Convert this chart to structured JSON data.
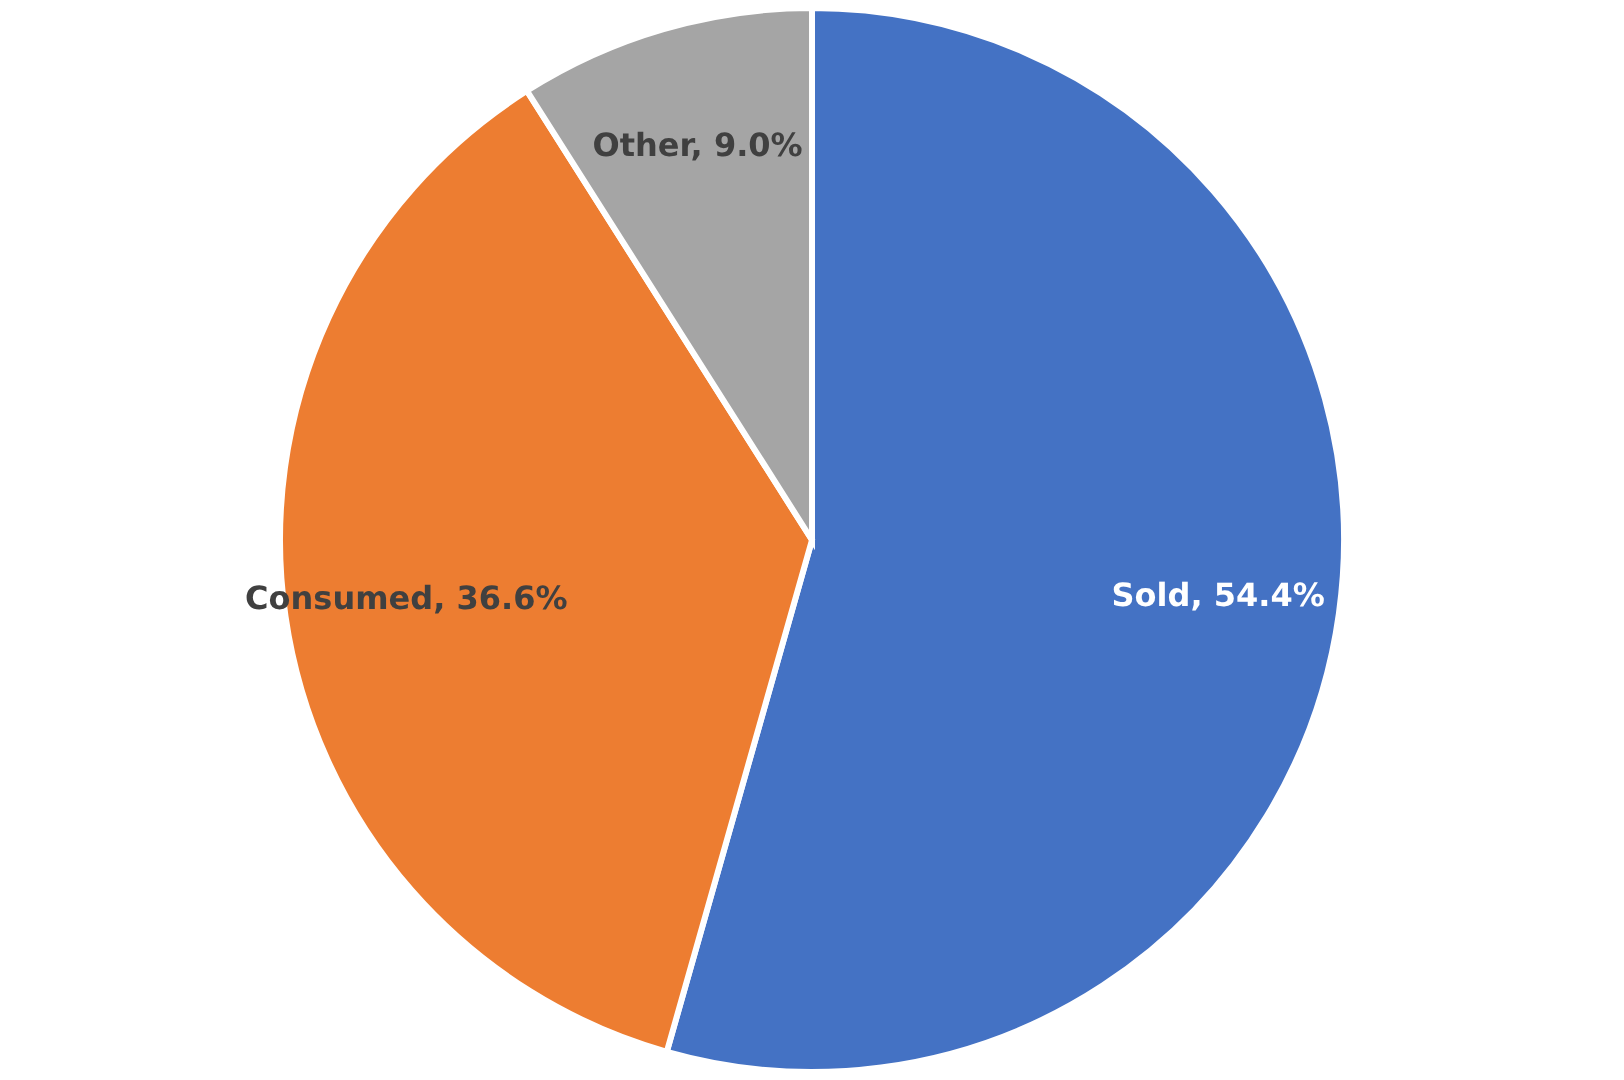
{
  "chart_data": {
    "type": "pie",
    "categories": [
      "Sold",
      "Consumed",
      "Other"
    ],
    "values": [
      54.4,
      36.6,
      9.0
    ],
    "colors": [
      "#4472c4",
      "#ed7d31",
      "#a5a5a5"
    ],
    "value_labels": [
      "54.4%",
      "36.6%",
      "9.0%"
    ]
  }
}
